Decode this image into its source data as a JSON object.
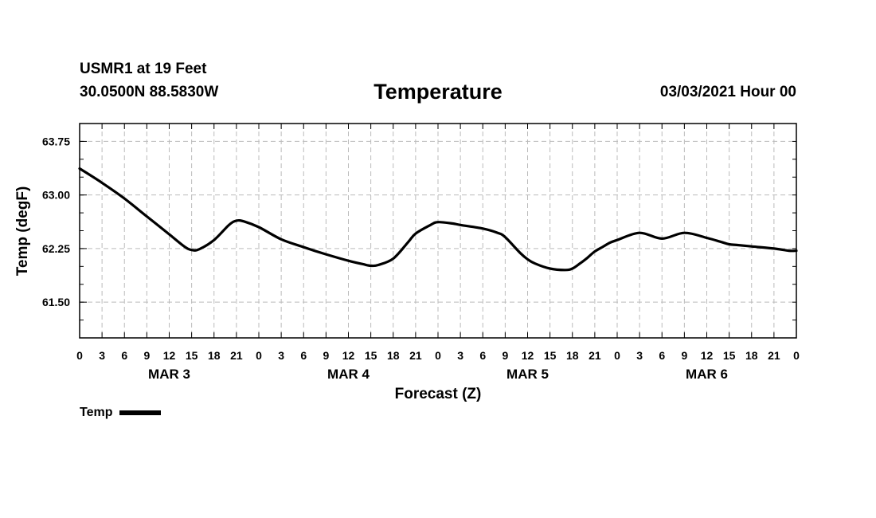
{
  "header": {
    "station": "USMR1 at 19 Feet",
    "coords": "30.0500N 88.5830W",
    "title": "Temperature",
    "datetime": "03/03/2021 Hour 00"
  },
  "legend": {
    "label": "Temp"
  },
  "colors": {
    "line": "#000000",
    "grid": "#bbbbbb",
    "axis": "#000000"
  },
  "chart_data": {
    "type": "line",
    "title": "Temperature",
    "xlabel": "Forecast (Z)",
    "ylabel": "Temp (degF)",
    "xlim": [
      0,
      96
    ],
    "ylim": [
      61.0,
      64.0
    ],
    "yticks": [
      61.5,
      62.25,
      63.0,
      63.75
    ],
    "ytick_labels": [
      "61.50",
      "62.25",
      "63.00",
      "63.75"
    ],
    "xticks": [
      0,
      3,
      6,
      9,
      12,
      15,
      18,
      21,
      24,
      27,
      30,
      33,
      36,
      39,
      42,
      45,
      48,
      51,
      54,
      57,
      60,
      63,
      66,
      69,
      72,
      75,
      78,
      81,
      84,
      87,
      90,
      93,
      96
    ],
    "xtick_labels": [
      "0",
      "3",
      "6",
      "9",
      "12",
      "15",
      "18",
      "21",
      "0",
      "3",
      "6",
      "9",
      "12",
      "15",
      "18",
      "21",
      "0",
      "3",
      "6",
      "9",
      "12",
      "15",
      "18",
      "21",
      "0",
      "3",
      "6",
      "9",
      "12",
      "15",
      "18",
      "21",
      "0"
    ],
    "day_labels": [
      {
        "label": "MAR 3",
        "x": 12
      },
      {
        "label": "MAR 4",
        "x": 36
      },
      {
        "label": "MAR 5",
        "x": 60
      },
      {
        "label": "MAR 6",
        "x": 84
      }
    ],
    "grid": true,
    "series": [
      {
        "name": "Temp",
        "x": [
          0,
          3,
          6,
          9,
          12,
          14,
          15,
          16,
          18,
          20,
          21,
          22,
          24,
          27,
          30,
          33,
          36,
          38,
          39,
          40,
          42,
          44,
          45,
          47,
          48,
          50,
          51,
          54,
          56,
          57,
          59,
          60,
          61,
          63,
          65,
          66,
          67,
          68,
          69,
          70,
          71,
          72,
          75,
          78,
          81,
          84,
          86,
          87,
          88,
          90,
          93,
          95,
          96
        ],
        "values": [
          63.37,
          63.17,
          62.95,
          62.7,
          62.45,
          62.28,
          62.23,
          62.24,
          62.37,
          62.58,
          62.64,
          62.63,
          62.55,
          62.38,
          62.27,
          62.17,
          62.08,
          62.03,
          62.01,
          62.02,
          62.11,
          62.34,
          62.46,
          62.58,
          62.62,
          62.6,
          62.58,
          62.53,
          62.47,
          62.41,
          62.19,
          62.1,
          62.04,
          61.97,
          61.95,
          61.97,
          62.04,
          62.12,
          62.21,
          62.27,
          62.33,
          62.37,
          62.47,
          62.39,
          62.47,
          62.4,
          62.34,
          62.31,
          62.3,
          62.28,
          62.25,
          62.22,
          62.22
        ]
      }
    ]
  }
}
